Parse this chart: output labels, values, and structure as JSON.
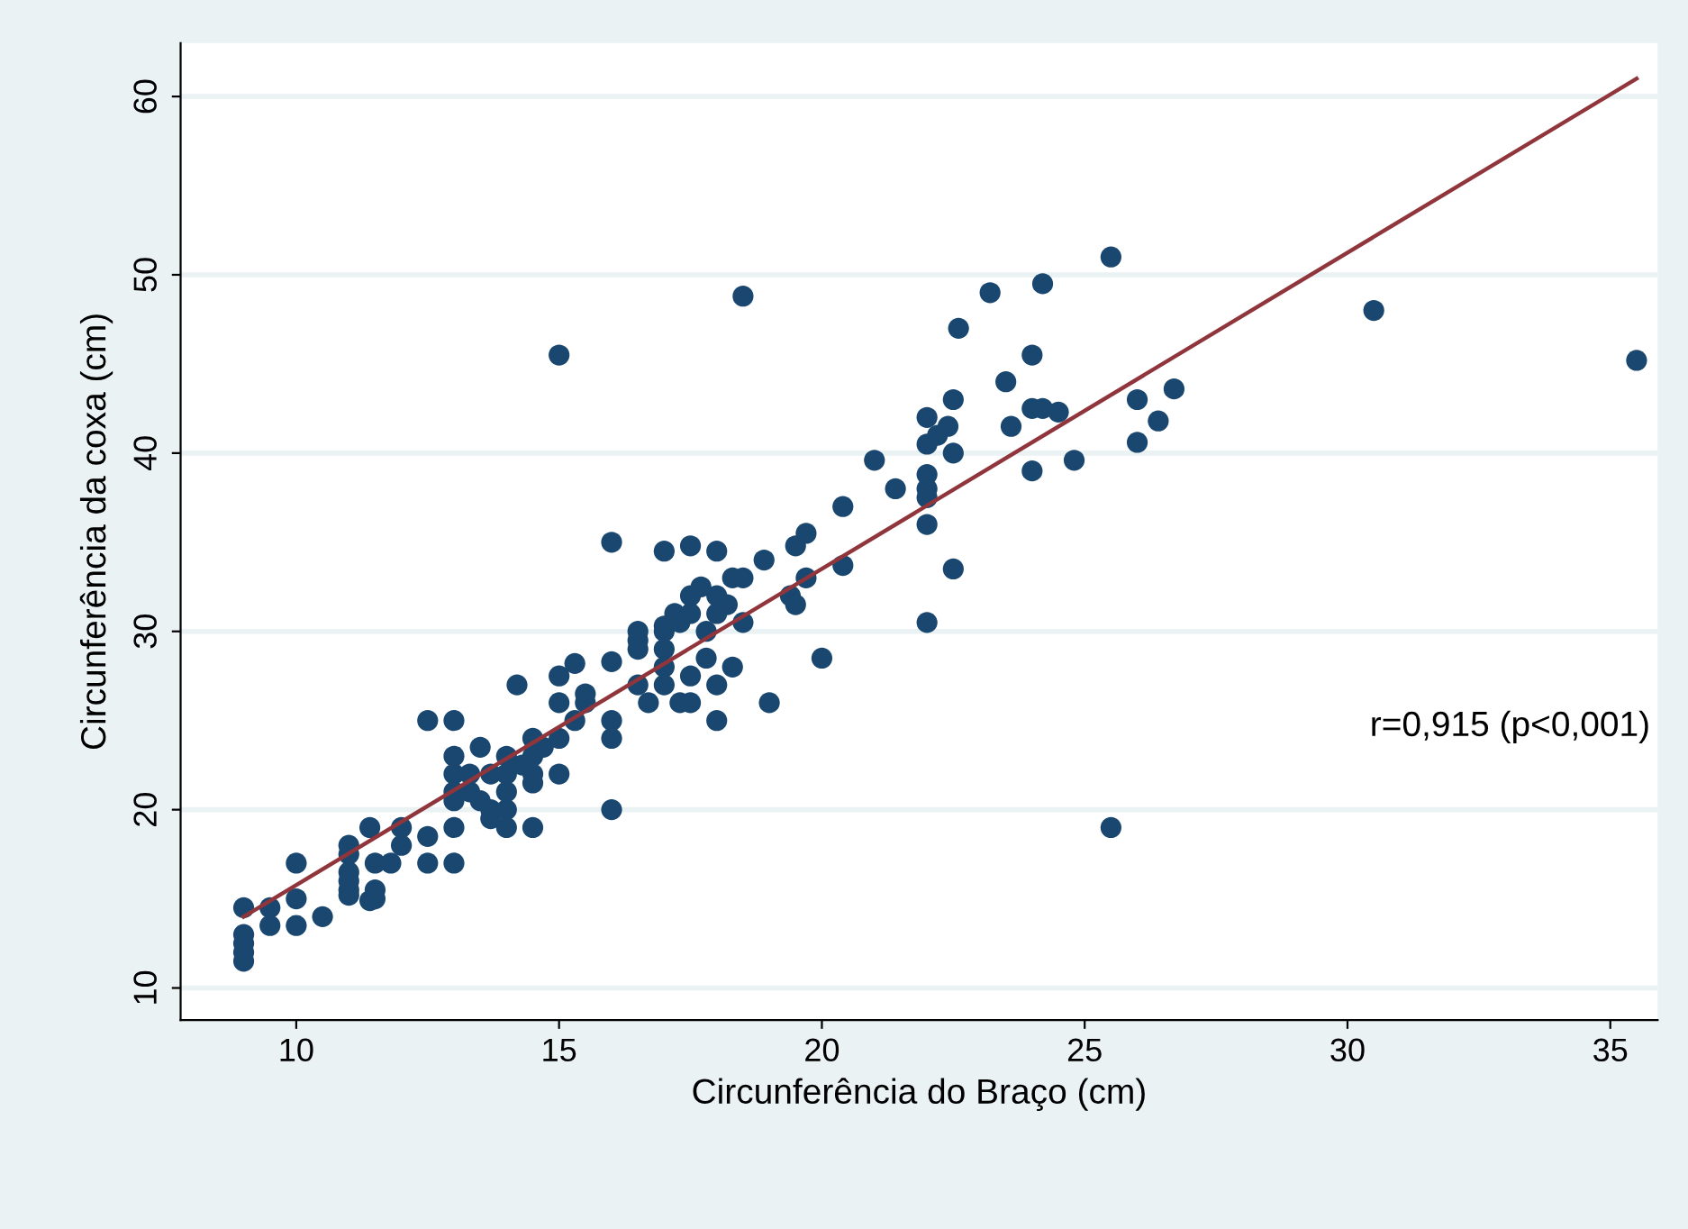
{
  "chart_data": {
    "type": "scatter",
    "xlabel": "Circunferência do Braço (cm)",
    "ylabel": "Circunferência da coxa (cm)",
    "annotations": [
      "r=0,915 (p<0,001)"
    ],
    "xlim": [
      7.8,
      35.9
    ],
    "ylim": [
      8.2,
      63
    ],
    "xticks": [
      10,
      15,
      20,
      25,
      30,
      35
    ],
    "yticks": [
      10,
      20,
      30,
      40,
      50,
      60
    ],
    "grid": "y",
    "series": [
      {
        "marker": "circle",
        "color": "#1a476f",
        "x": [
          9,
          9,
          9,
          9,
          9,
          9.5,
          9.5,
          10,
          10,
          10,
          10.5,
          11,
          11,
          11,
          11,
          11,
          11,
          11.4,
          11.5,
          11.5,
          11.5,
          11.4,
          11.8,
          12,
          12,
          12.5,
          12.5,
          12.5,
          13,
          13,
          13,
          13,
          13,
          13,
          13,
          13.3,
          13.3,
          13.5,
          13.5,
          13.7,
          13.7,
          13.7,
          14,
          14,
          14,
          14,
          14,
          14.2,
          14.3,
          14.5,
          14.5,
          14.5,
          14.5,
          14.5,
          14.7,
          15,
          15,
          15,
          15,
          15,
          15.3,
          15.3,
          15.5,
          15.5,
          16,
          16,
          16,
          16,
          16,
          16.5,
          16.5,
          16.5,
          16.5,
          16.7,
          17,
          17,
          17,
          17,
          17,
          17,
          17.2,
          17.3,
          17.3,
          17.5,
          17.5,
          17.5,
          17.5,
          17.5,
          17.7,
          17.8,
          17.8,
          18,
          18,
          18,
          18,
          18,
          18.2,
          18.3,
          18.3,
          18.5,
          18.5,
          18.5,
          18.9,
          19,
          19.4,
          19.5,
          19.5,
          19.7,
          19.7,
          20,
          20.4,
          20.4,
          21,
          21.4,
          22,
          22,
          22,
          22,
          22,
          22,
          22,
          22.2,
          22.4,
          22.5,
          22.5,
          22.5,
          22.6,
          23.2,
          23.5,
          23.6,
          24,
          24,
          24,
          24.2,
          24.2,
          24.5,
          24.8,
          25.5,
          25.5,
          26,
          26,
          26.4,
          26.7,
          30.5,
          35.5
        ],
        "values": [
          14.5,
          13,
          12.5,
          11.5,
          12,
          14.5,
          13.5,
          17,
          15,
          13.5,
          14,
          18,
          17.5,
          16.5,
          16,
          15.5,
          15.2,
          19,
          17,
          15.5,
          15,
          14.9,
          17,
          19,
          18,
          25,
          18.5,
          17,
          25,
          23,
          22,
          21,
          20.5,
          19,
          17,
          22,
          21,
          23.5,
          20.5,
          22,
          20,
          19.5,
          23,
          22,
          21,
          20,
          19,
          27,
          22.5,
          24,
          23,
          22,
          21.5,
          19,
          23.5,
          45.5,
          27.5,
          26,
          24,
          22,
          28.2,
          25,
          26.5,
          26,
          35,
          28.3,
          25,
          24,
          20,
          30,
          29.5,
          29,
          27,
          26,
          34.5,
          30.3,
          30,
          29,
          28,
          27,
          31,
          30.5,
          26,
          34.8,
          32,
          31,
          27.5,
          26,
          32.5,
          30,
          28.5,
          34.5,
          32,
          31,
          27,
          25,
          31.5,
          28,
          33,
          48.8,
          33,
          30.5,
          34,
          26,
          32,
          34.8,
          31.5,
          35.5,
          33,
          28.5,
          37,
          33.7,
          39.6,
          38,
          42,
          40.5,
          38.8,
          38,
          37.5,
          36,
          30.5,
          41,
          41.5,
          43,
          40,
          33.5,
          47,
          49,
          44,
          41.5,
          45.5,
          42.5,
          39,
          49.5,
          42.5,
          42.3,
          39.6,
          51,
          19,
          43,
          40.6,
          41.8,
          43.6,
          48,
          45.2
        ]
      },
      {
        "type": "line",
        "color": "#90353b",
        "x": [
          9,
          35.5
        ],
        "values": [
          14,
          61
        ]
      }
    ]
  }
}
